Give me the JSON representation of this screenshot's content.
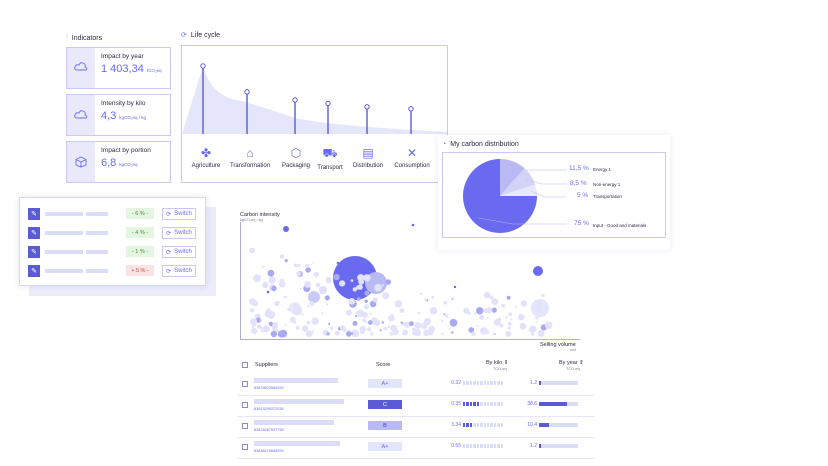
{
  "indicators": {
    "title": "Indicators",
    "cards": [
      {
        "title": "Impact by year",
        "value": "1 403,34",
        "unit": "tCO₂eq",
        "icon": "cloud-rain-icon"
      },
      {
        "title": "Intensity by kilo",
        "value": "4,3",
        "unit": "kgCO₂eq / kg",
        "icon": "cloud-icon"
      },
      {
        "title": "Impact by portion",
        "value": "6,8",
        "unit": "kgCO₂eq",
        "icon": "box-icon"
      }
    ]
  },
  "life_cycle": {
    "title": "Life cycle",
    "steps": [
      {
        "label": "Agriculture",
        "icon": "wheat-icon",
        "glyph": "✤"
      },
      {
        "label": "Transformation",
        "icon": "factory-icon",
        "glyph": "⌂"
      },
      {
        "label": "Packaging",
        "icon": "package-icon",
        "glyph": "⬡"
      },
      {
        "label": "Transport",
        "icon": "truck-icon",
        "glyph": "⛟"
      },
      {
        "label": "Distribution",
        "icon": "store-icon",
        "glyph": "▤"
      },
      {
        "label": "Consumption",
        "icon": "utensils-icon",
        "glyph": "✕"
      }
    ],
    "levels": [
      1.0,
      0.62,
      0.5,
      0.45,
      0.4,
      0.37
    ]
  },
  "distribution": {
    "title": "My carbon distribution",
    "slices": [
      {
        "pct": "11,5 %",
        "label": "Energy 1",
        "value": 11.5,
        "color": "#b9b9f3"
      },
      {
        "pct": "8,5 %",
        "label": "Non-energy 1",
        "value": 8.5,
        "color": "#d3d3f8"
      },
      {
        "pct": "5 %",
        "label": "Transportation",
        "value": 5,
        "color": "#e9e9fc"
      },
      {
        "pct": "75 %",
        "label": "Input - Good and materials",
        "value": 75,
        "color": "#6a6af0"
      }
    ]
  },
  "switches": [
    {
      "badge": "- 6 % -",
      "tone": "green",
      "switch": "Switch"
    },
    {
      "badge": "- 4 % -",
      "tone": "green",
      "switch": "Switch"
    },
    {
      "badge": "- 1 % -",
      "tone": "green",
      "switch": "Switch"
    },
    {
      "badge": "+ 5 % -",
      "tone": "red",
      "switch": "Switch"
    }
  ],
  "scatter": {
    "title": "Carbon intensity",
    "unit": "kgCO₂eq / kg",
    "xlabel": "Selling volume",
    "xunit": "unit"
  },
  "table": {
    "headers": {
      "suppliers": "Suppliers",
      "score": "Score",
      "by_kilo": "By kilo ⇕",
      "by_kilo_unit": "TCO₂eq",
      "by_year": "By year ⇕",
      "by_year_unit": "TCO₂eq"
    },
    "rows": [
      {
        "code": "83829823582939",
        "score": "A+",
        "score_style": "light",
        "kilo": "0.32",
        "kilo_on": 0,
        "year": "1.2",
        "year_frac": 0.05,
        "name_w": 84
      },
      {
        "code": "83913299372038",
        "score": "C",
        "score_style": "dark",
        "kilo": "0.35",
        "kilo_on": 5,
        "year": "38.6",
        "year_frac": 0.72,
        "name_w": 90
      },
      {
        "code": "83828487837738",
        "score": "B",
        "score_style": "mid",
        "kilo": "3.34",
        "kilo_on": 3,
        "year": "10.4",
        "year_frac": 0.25,
        "name_w": 80
      },
      {
        "code": "83838475848394",
        "score": "A+",
        "score_style": "light",
        "kilo": "0.55",
        "kilo_on": 0,
        "year": "1.2",
        "year_frac": 0.05,
        "name_w": 86
      }
    ]
  }
}
